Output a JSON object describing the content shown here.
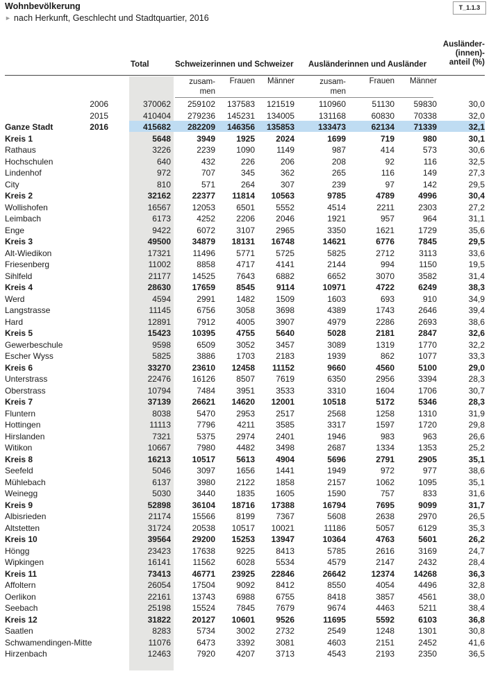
{
  "title": "Wohnbevölkerung",
  "subtitle": "nach Herkunft, Geschlecht und Stadtquartier, 2016",
  "table_id": "T_1.1.3",
  "headers": {
    "total": "Total",
    "swiss": "Schweizerinnen und Schweizer",
    "foreign": "Ausländerinnen und Ausländer",
    "share_l1": "Ausländer-",
    "share_l2": "(innen)-",
    "share_l3": "anteil (%)",
    "zusam": "zusam-",
    "men": "men",
    "frauen": "Frauen",
    "maenner": "Männer"
  },
  "rows": [
    {
      "name": "",
      "year": "2006",
      "v": [
        "370062",
        "259102",
        "137583",
        "121519",
        "110960",
        "51130",
        "59830",
        "30,0"
      ]
    },
    {
      "name": "",
      "year": "2015",
      "v": [
        "410404",
        "279236",
        "145231",
        "134005",
        "131168",
        "60830",
        "70338",
        "32,0"
      ]
    },
    {
      "name": "Ganze Stadt",
      "year": "2016",
      "bold": true,
      "v": [
        "415682",
        "282209",
        "146356",
        "135853",
        "133473",
        "62134",
        "71339",
        "32,1"
      ]
    },
    {
      "name": "Kreis 1",
      "bold": true,
      "v": [
        "5648",
        "3949",
        "1925",
        "2024",
        "1699",
        "719",
        "980",
        "30,1"
      ]
    },
    {
      "name": "Rathaus",
      "v": [
        "3226",
        "2239",
        "1090",
        "1149",
        "987",
        "414",
        "573",
        "30,6"
      ]
    },
    {
      "name": "Hochschulen",
      "v": [
        "640",
        "432",
        "226",
        "206",
        "208",
        "92",
        "116",
        "32,5"
      ]
    },
    {
      "name": "Lindenhof",
      "v": [
        "972",
        "707",
        "345",
        "362",
        "265",
        "116",
        "149",
        "27,3"
      ]
    },
    {
      "name": "City",
      "v": [
        "810",
        "571",
        "264",
        "307",
        "239",
        "97",
        "142",
        "29,5"
      ]
    },
    {
      "name": "Kreis 2",
      "bold": true,
      "v": [
        "32162",
        "22377",
        "11814",
        "10563",
        "9785",
        "4789",
        "4996",
        "30,4"
      ]
    },
    {
      "name": "Wollishofen",
      "v": [
        "16567",
        "12053",
        "6501",
        "5552",
        "4514",
        "2211",
        "2303",
        "27,2"
      ]
    },
    {
      "name": "Leimbach",
      "v": [
        "6173",
        "4252",
        "2206",
        "2046",
        "1921",
        "957",
        "964",
        "31,1"
      ]
    },
    {
      "name": "Enge",
      "v": [
        "9422",
        "6072",
        "3107",
        "2965",
        "3350",
        "1621",
        "1729",
        "35,6"
      ]
    },
    {
      "name": "Kreis 3",
      "bold": true,
      "v": [
        "49500",
        "34879",
        "18131",
        "16748",
        "14621",
        "6776",
        "7845",
        "29,5"
      ]
    },
    {
      "name": "Alt-Wiedikon",
      "v": [
        "17321",
        "11496",
        "5771",
        "5725",
        "5825",
        "2712",
        "3113",
        "33,6"
      ]
    },
    {
      "name": "Friesenberg",
      "v": [
        "11002",
        "8858",
        "4717",
        "4141",
        "2144",
        "994",
        "1150",
        "19,5"
      ]
    },
    {
      "name": "Sihlfeld",
      "v": [
        "21177",
        "14525",
        "7643",
        "6882",
        "6652",
        "3070",
        "3582",
        "31,4"
      ]
    },
    {
      "name": "Kreis 4",
      "bold": true,
      "v": [
        "28630",
        "17659",
        "8545",
        "9114",
        "10971",
        "4722",
        "6249",
        "38,3"
      ]
    },
    {
      "name": "Werd",
      "v": [
        "4594",
        "2991",
        "1482",
        "1509",
        "1603",
        "693",
        "910",
        "34,9"
      ]
    },
    {
      "name": "Langstrasse",
      "v": [
        "11145",
        "6756",
        "3058",
        "3698",
        "4389",
        "1743",
        "2646",
        "39,4"
      ]
    },
    {
      "name": "Hard",
      "v": [
        "12891",
        "7912",
        "4005",
        "3907",
        "4979",
        "2286",
        "2693",
        "38,6"
      ]
    },
    {
      "name": "Kreis 5",
      "bold": true,
      "v": [
        "15423",
        "10395",
        "4755",
        "5640",
        "5028",
        "2181",
        "2847",
        "32,6"
      ]
    },
    {
      "name": "Gewerbeschule",
      "v": [
        "9598",
        "6509",
        "3052",
        "3457",
        "3089",
        "1319",
        "1770",
        "32,2"
      ]
    },
    {
      "name": "Escher Wyss",
      "v": [
        "5825",
        "3886",
        "1703",
        "2183",
        "1939",
        "862",
        "1077",
        "33,3"
      ]
    },
    {
      "name": "Kreis 6",
      "bold": true,
      "v": [
        "33270",
        "23610",
        "12458",
        "11152",
        "9660",
        "4560",
        "5100",
        "29,0"
      ]
    },
    {
      "name": "Unterstrass",
      "v": [
        "22476",
        "16126",
        "8507",
        "7619",
        "6350",
        "2956",
        "3394",
        "28,3"
      ]
    },
    {
      "name": "Oberstrass",
      "v": [
        "10794",
        "7484",
        "3951",
        "3533",
        "3310",
        "1604",
        "1706",
        "30,7"
      ]
    },
    {
      "name": "Kreis 7",
      "bold": true,
      "v": [
        "37139",
        "26621",
        "14620",
        "12001",
        "10518",
        "5172",
        "5346",
        "28,3"
      ]
    },
    {
      "name": "Fluntern",
      "v": [
        "8038",
        "5470",
        "2953",
        "2517",
        "2568",
        "1258",
        "1310",
        "31,9"
      ]
    },
    {
      "name": "Hottingen",
      "v": [
        "11113",
        "7796",
        "4211",
        "3585",
        "3317",
        "1597",
        "1720",
        "29,8"
      ]
    },
    {
      "name": "Hirslanden",
      "v": [
        "7321",
        "5375",
        "2974",
        "2401",
        "1946",
        "983",
        "963",
        "26,6"
      ]
    },
    {
      "name": "Witikon",
      "v": [
        "10667",
        "7980",
        "4482",
        "3498",
        "2687",
        "1334",
        "1353",
        "25,2"
      ]
    },
    {
      "name": "Kreis 8",
      "bold": true,
      "v": [
        "16213",
        "10517",
        "5613",
        "4904",
        "5696",
        "2791",
        "2905",
        "35,1"
      ]
    },
    {
      "name": "Seefeld",
      "v": [
        "5046",
        "3097",
        "1656",
        "1441",
        "1949",
        "972",
        "977",
        "38,6"
      ]
    },
    {
      "name": "Mühlebach",
      "v": [
        "6137",
        "3980",
        "2122",
        "1858",
        "2157",
        "1062",
        "1095",
        "35,1"
      ]
    },
    {
      "name": "Weinegg",
      "v": [
        "5030",
        "3440",
        "1835",
        "1605",
        "1590",
        "757",
        "833",
        "31,6"
      ]
    },
    {
      "name": "Kreis 9",
      "bold": true,
      "v": [
        "52898",
        "36104",
        "18716",
        "17388",
        "16794",
        "7695",
        "9099",
        "31,7"
      ]
    },
    {
      "name": "Albisrieden",
      "v": [
        "21174",
        "15566",
        "8199",
        "7367",
        "5608",
        "2638",
        "2970",
        "26,5"
      ]
    },
    {
      "name": "Altstetten",
      "v": [
        "31724",
        "20538",
        "10517",
        "10021",
        "11186",
        "5057",
        "6129",
        "35,3"
      ]
    },
    {
      "name": "Kreis 10",
      "bold": true,
      "v": [
        "39564",
        "29200",
        "15253",
        "13947",
        "10364",
        "4763",
        "5601",
        "26,2"
      ]
    },
    {
      "name": "Höngg",
      "v": [
        "23423",
        "17638",
        "9225",
        "8413",
        "5785",
        "2616",
        "3169",
        "24,7"
      ]
    },
    {
      "name": "Wipkingen",
      "v": [
        "16141",
        "11562",
        "6028",
        "5534",
        "4579",
        "2147",
        "2432",
        "28,4"
      ]
    },
    {
      "name": "Kreis 11",
      "bold": true,
      "v": [
        "73413",
        "46771",
        "23925",
        "22846",
        "26642",
        "12374",
        "14268",
        "36,3"
      ]
    },
    {
      "name": "Affoltern",
      "v": [
        "26054",
        "17504",
        "9092",
        "8412",
        "8550",
        "4054",
        "4496",
        "32,8"
      ]
    },
    {
      "name": "Oerlikon",
      "v": [
        "22161",
        "13743",
        "6988",
        "6755",
        "8418",
        "3857",
        "4561",
        "38,0"
      ]
    },
    {
      "name": "Seebach",
      "v": [
        "25198",
        "15524",
        "7845",
        "7679",
        "9674",
        "4463",
        "5211",
        "38,4"
      ]
    },
    {
      "name": "Kreis 12",
      "bold": true,
      "v": [
        "31822",
        "20127",
        "10601",
        "9526",
        "11695",
        "5592",
        "6103",
        "36,8"
      ]
    },
    {
      "name": "Saatlen",
      "v": [
        "8283",
        "5734",
        "3002",
        "2732",
        "2549",
        "1248",
        "1301",
        "30,8"
      ]
    },
    {
      "name": "Schwamendingen-Mitte",
      "v": [
        "11076",
        "6473",
        "3392",
        "3081",
        "4603",
        "2151",
        "2452",
        "41,6"
      ]
    },
    {
      "name": "Hirzenbach",
      "v": [
        "12463",
        "7920",
        "4207",
        "3713",
        "4543",
        "2193",
        "2350",
        "36,5"
      ]
    }
  ],
  "colors": {
    "total_column": "#e5e5e3",
    "highlight_row": "#bfdcf2"
  }
}
